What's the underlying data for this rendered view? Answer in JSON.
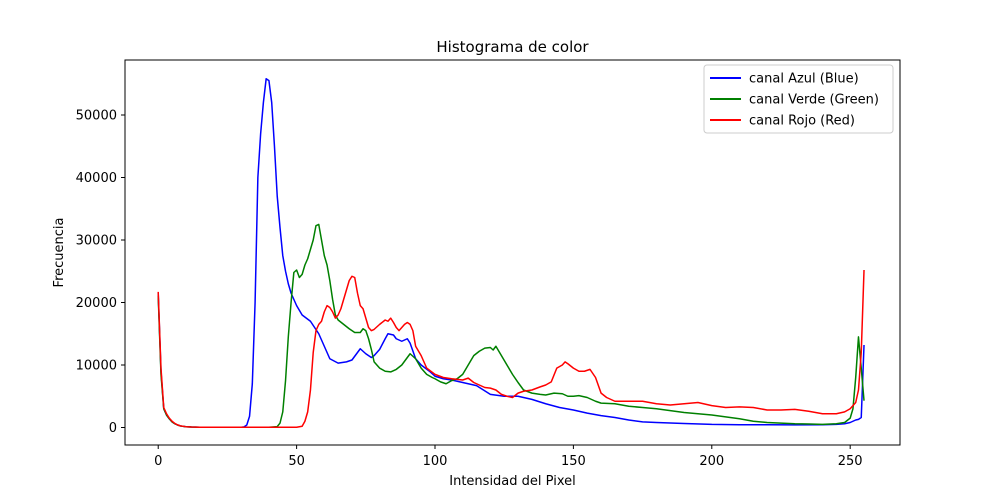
{
  "chart_data": {
    "type": "line",
    "title": "Histograma de color",
    "xlabel": "Intensidad del Pixel",
    "ylabel": "Frecuencia",
    "xlim": [
      -12,
      268
    ],
    "ylim": [
      -2800,
      58800
    ],
    "xticks": [
      0,
      50,
      100,
      150,
      200,
      250
    ],
    "yticks": [
      0,
      10000,
      20000,
      30000,
      40000,
      50000
    ],
    "grid": false,
    "legend_position": "top-right",
    "series": [
      {
        "name": "canal Azul (Blue)",
        "color": "#0000ff",
        "points": [
          [
            0,
            21500
          ],
          [
            1,
            9000
          ],
          [
            2,
            3000
          ],
          [
            3,
            2000
          ],
          [
            4,
            1400
          ],
          [
            5,
            900
          ],
          [
            6,
            600
          ],
          [
            7,
            400
          ],
          [
            8,
            250
          ],
          [
            10,
            120
          ],
          [
            12,
            80
          ],
          [
            15,
            50
          ],
          [
            20,
            30
          ],
          [
            25,
            30
          ],
          [
            30,
            40
          ],
          [
            31,
            100
          ],
          [
            32,
            400
          ],
          [
            33,
            1800
          ],
          [
            34,
            7000
          ],
          [
            35,
            20000
          ],
          [
            36,
            40000
          ],
          [
            37,
            47000
          ],
          [
            38,
            52000
          ],
          [
            39,
            55800
          ],
          [
            40,
            55500
          ],
          [
            41,
            52000
          ],
          [
            42,
            45000
          ],
          [
            43,
            37000
          ],
          [
            44,
            32000
          ],
          [
            45,
            27500
          ],
          [
            46,
            25000
          ],
          [
            47,
            23000
          ],
          [
            48,
            21500
          ],
          [
            50,
            19500
          ],
          [
            52,
            18000
          ],
          [
            55,
            17000
          ],
          [
            58,
            15000
          ],
          [
            60,
            13000
          ],
          [
            62,
            11000
          ],
          [
            65,
            10300
          ],
          [
            68,
            10500
          ],
          [
            70,
            10800
          ],
          [
            72,
            12000
          ],
          [
            73,
            12600
          ],
          [
            75,
            11800
          ],
          [
            77,
            11200
          ],
          [
            78,
            11500
          ],
          [
            80,
            12500
          ],
          [
            82,
            14200
          ],
          [
            83,
            15000
          ],
          [
            85,
            14800
          ],
          [
            86,
            14200
          ],
          [
            88,
            13800
          ],
          [
            90,
            14200
          ],
          [
            91,
            13500
          ],
          [
            93,
            11000
          ],
          [
            95,
            10000
          ],
          [
            98,
            9000
          ],
          [
            100,
            8200
          ],
          [
            103,
            7800
          ],
          [
            106,
            7600
          ],
          [
            110,
            7200
          ],
          [
            115,
            6700
          ],
          [
            120,
            5300
          ],
          [
            125,
            5000
          ],
          [
            130,
            5000
          ],
          [
            135,
            4500
          ],
          [
            140,
            3800
          ],
          [
            145,
            3200
          ],
          [
            150,
            2800
          ],
          [
            155,
            2300
          ],
          [
            160,
            1900
          ],
          [
            165,
            1600
          ],
          [
            170,
            1200
          ],
          [
            175,
            900
          ],
          [
            180,
            800
          ],
          [
            190,
            650
          ],
          [
            200,
            500
          ],
          [
            210,
            450
          ],
          [
            220,
            450
          ],
          [
            230,
            420
          ],
          [
            240,
            450
          ],
          [
            245,
            500
          ],
          [
            248,
            600
          ],
          [
            250,
            800
          ],
          [
            252,
            1200
          ],
          [
            253,
            1300
          ],
          [
            254,
            1600
          ],
          [
            255,
            13200
          ]
        ]
      },
      {
        "name": "canal Verde (Green)",
        "color": "#008000",
        "points": [
          [
            0,
            21000
          ],
          [
            1,
            8500
          ],
          [
            2,
            3000
          ],
          [
            3,
            2000
          ],
          [
            4,
            1400
          ],
          [
            5,
            900
          ],
          [
            6,
            600
          ],
          [
            7,
            400
          ],
          [
            8,
            250
          ],
          [
            10,
            120
          ],
          [
            12,
            80
          ],
          [
            15,
            50
          ],
          [
            20,
            30
          ],
          [
            30,
            30
          ],
          [
            40,
            40
          ],
          [
            43,
            150
          ],
          [
            44,
            700
          ],
          [
            45,
            2500
          ],
          [
            46,
            7500
          ],
          [
            47,
            14500
          ],
          [
            48,
            20000
          ],
          [
            49,
            24800
          ],
          [
            50,
            25200
          ],
          [
            51,
            24000
          ],
          [
            52,
            24500
          ],
          [
            53,
            26000
          ],
          [
            54,
            27000
          ],
          [
            55,
            28500
          ],
          [
            56,
            30000
          ],
          [
            57,
            32300
          ],
          [
            58,
            32500
          ],
          [
            59,
            30000
          ],
          [
            60,
            27500
          ],
          [
            61,
            26000
          ],
          [
            62,
            23500
          ],
          [
            63,
            20500
          ],
          [
            64,
            18000
          ],
          [
            65,
            17200
          ],
          [
            67,
            16500
          ],
          [
            69,
            15800
          ],
          [
            71,
            15200
          ],
          [
            73,
            15200
          ],
          [
            74,
            15800
          ],
          [
            75,
            15500
          ],
          [
            76,
            14200
          ],
          [
            77,
            12500
          ],
          [
            78,
            10500
          ],
          [
            80,
            9500
          ],
          [
            82,
            9000
          ],
          [
            84,
            8900
          ],
          [
            86,
            9300
          ],
          [
            88,
            10000
          ],
          [
            90,
            11200
          ],
          [
            91,
            11800
          ],
          [
            93,
            11000
          ],
          [
            95,
            9500
          ],
          [
            97,
            8500
          ],
          [
            99,
            8000
          ],
          [
            100,
            7800
          ],
          [
            102,
            7300
          ],
          [
            104,
            7000
          ],
          [
            106,
            7500
          ],
          [
            108,
            7800
          ],
          [
            110,
            8500
          ],
          [
            112,
            10000
          ],
          [
            114,
            11500
          ],
          [
            116,
            12200
          ],
          [
            118,
            12700
          ],
          [
            120,
            12800
          ],
          [
            121,
            12400
          ],
          [
            122,
            13000
          ],
          [
            124,
            11500
          ],
          [
            126,
            10000
          ],
          [
            128,
            8500
          ],
          [
            130,
            7200
          ],
          [
            132,
            6000
          ],
          [
            135,
            5500
          ],
          [
            138,
            5300
          ],
          [
            140,
            5200
          ],
          [
            143,
            5500
          ],
          [
            146,
            5400
          ],
          [
            148,
            5000
          ],
          [
            150,
            5000
          ],
          [
            152,
            5100
          ],
          [
            155,
            4800
          ],
          [
            158,
            4200
          ],
          [
            160,
            3900
          ],
          [
            165,
            3800
          ],
          [
            170,
            3400
          ],
          [
            175,
            3200
          ],
          [
            180,
            3000
          ],
          [
            185,
            2700
          ],
          [
            190,
            2400
          ],
          [
            195,
            2200
          ],
          [
            200,
            2000
          ],
          [
            205,
            1700
          ],
          [
            210,
            1400
          ],
          [
            215,
            1000
          ],
          [
            220,
            800
          ],
          [
            225,
            700
          ],
          [
            230,
            600
          ],
          [
            235,
            550
          ],
          [
            240,
            500
          ],
          [
            245,
            600
          ],
          [
            248,
            800
          ],
          [
            250,
            1500
          ],
          [
            251,
            3000
          ],
          [
            252,
            8000
          ],
          [
            253,
            14500
          ],
          [
            254,
            9500
          ],
          [
            255,
            4300
          ]
        ]
      },
      {
        "name": "canal Rojo (Red)",
        "color": "#ff0000",
        "points": [
          [
            0,
            21700
          ],
          [
            1,
            9500
          ],
          [
            2,
            3200
          ],
          [
            3,
            2200
          ],
          [
            4,
            1500
          ],
          [
            5,
            1000
          ],
          [
            6,
            650
          ],
          [
            7,
            420
          ],
          [
            8,
            260
          ],
          [
            10,
            130
          ],
          [
            12,
            80
          ],
          [
            15,
            50
          ],
          [
            20,
            30
          ],
          [
            30,
            30
          ],
          [
            40,
            30
          ],
          [
            50,
            40
          ],
          [
            52,
            200
          ],
          [
            53,
            1000
          ],
          [
            54,
            2500
          ],
          [
            55,
            6000
          ],
          [
            56,
            12000
          ],
          [
            57,
            15500
          ],
          [
            58,
            16500
          ],
          [
            59,
            17000
          ],
          [
            60,
            18500
          ],
          [
            61,
            19500
          ],
          [
            62,
            19200
          ],
          [
            63,
            18500
          ],
          [
            64,
            17500
          ],
          [
            65,
            18000
          ],
          [
            66,
            19000
          ],
          [
            67,
            20500
          ],
          [
            68,
            22000
          ],
          [
            69,
            23500
          ],
          [
            70,
            24200
          ],
          [
            71,
            24000
          ],
          [
            72,
            21500
          ],
          [
            73,
            19500
          ],
          [
            74,
            19000
          ],
          [
            75,
            17500
          ],
          [
            76,
            16000
          ],
          [
            77,
            15500
          ],
          [
            78,
            15700
          ],
          [
            80,
            16500
          ],
          [
            82,
            17200
          ],
          [
            83,
            17000
          ],
          [
            84,
            17500
          ],
          [
            85,
            16800
          ],
          [
            86,
            16000
          ],
          [
            87,
            15500
          ],
          [
            88,
            16000
          ],
          [
            89,
            16500
          ],
          [
            90,
            16800
          ],
          [
            91,
            16500
          ],
          [
            92,
            15500
          ],
          [
            93,
            13000
          ],
          [
            95,
            11500
          ],
          [
            97,
            9500
          ],
          [
            100,
            8500
          ],
          [
            103,
            8000
          ],
          [
            106,
            7800
          ],
          [
            110,
            7600
          ],
          [
            112,
            7900
          ],
          [
            114,
            7200
          ],
          [
            116,
            6800
          ],
          [
            118,
            6400
          ],
          [
            120,
            6300
          ],
          [
            122,
            6000
          ],
          [
            124,
            5300
          ],
          [
            126,
            5000
          ],
          [
            128,
            4800
          ],
          [
            130,
            5500
          ],
          [
            132,
            5800
          ],
          [
            135,
            6000
          ],
          [
            138,
            6500
          ],
          [
            140,
            6800
          ],
          [
            142,
            7300
          ],
          [
            144,
            9500
          ],
          [
            146,
            10000
          ],
          [
            147,
            10500
          ],
          [
            148,
            10200
          ],
          [
            150,
            9500
          ],
          [
            152,
            9000
          ],
          [
            154,
            9000
          ],
          [
            156,
            9300
          ],
          [
            158,
            8000
          ],
          [
            160,
            5500
          ],
          [
            162,
            4800
          ],
          [
            165,
            4200
          ],
          [
            170,
            4200
          ],
          [
            175,
            4200
          ],
          [
            180,
            3800
          ],
          [
            185,
            3600
          ],
          [
            190,
            3800
          ],
          [
            195,
            4000
          ],
          [
            200,
            3500
          ],
          [
            205,
            3200
          ],
          [
            210,
            3300
          ],
          [
            215,
            3200
          ],
          [
            220,
            2800
          ],
          [
            225,
            2800
          ],
          [
            230,
            2900
          ],
          [
            235,
            2600
          ],
          [
            240,
            2200
          ],
          [
            245,
            2200
          ],
          [
            248,
            2500
          ],
          [
            250,
            3000
          ],
          [
            252,
            4000
          ],
          [
            253,
            6000
          ],
          [
            254,
            12000
          ],
          [
            255,
            25200
          ]
        ]
      }
    ]
  }
}
